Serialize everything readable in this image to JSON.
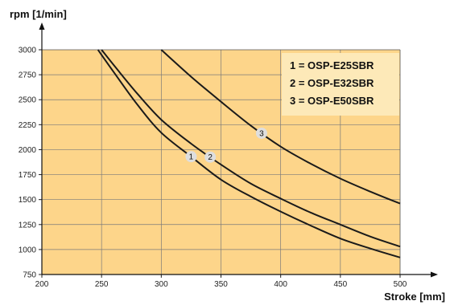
{
  "chart_data": {
    "type": "line",
    "title": "",
    "xlabel": "Stroke [mm]",
    "ylabel": "rpm  [1/min]",
    "xlim": [
      200,
      500
    ],
    "ylim": [
      750,
      3000
    ],
    "x_ticks": [
      "200",
      "250",
      "300",
      "350",
      "400",
      "450",
      "500"
    ],
    "y_ticks": [
      "750",
      "1000",
      "1250",
      "1500",
      "1750",
      "2000",
      "2250",
      "2500",
      "2750",
      "3000"
    ],
    "grid": true,
    "legend_position": "top-right",
    "colors": {
      "plot_background": "#fdd58a",
      "legend_background": "#fde9b8",
      "grid": "#7a7a7a",
      "line": "#1a1a1a",
      "marker_fill": "#dedede"
    },
    "legend": [
      "1 = OSP-E25SBR",
      "2 = OSP-E32SBR",
      "3 = OSP-E50SBR"
    ],
    "series": [
      {
        "marker": "1",
        "marker_x": 325,
        "points": [
          [
            247,
            3000
          ],
          [
            260,
            2780
          ],
          [
            280,
            2450
          ],
          [
            300,
            2170
          ],
          [
            325,
            1930
          ],
          [
            350,
            1700
          ],
          [
            375,
            1530
          ],
          [
            400,
            1380
          ],
          [
            425,
            1240
          ],
          [
            450,
            1110
          ],
          [
            475,
            1010
          ],
          [
            500,
            920
          ]
        ]
      },
      {
        "marker": "2",
        "marker_x": 341,
        "points": [
          [
            250,
            3000
          ],
          [
            262,
            2820
          ],
          [
            280,
            2560
          ],
          [
            300,
            2300
          ],
          [
            325,
            2060
          ],
          [
            350,
            1850
          ],
          [
            375,
            1660
          ],
          [
            400,
            1510
          ],
          [
            425,
            1370
          ],
          [
            450,
            1250
          ],
          [
            475,
            1130
          ],
          [
            500,
            1030
          ]
        ]
      },
      {
        "marker": "3",
        "marker_x": 384,
        "points": [
          [
            300,
            3000
          ],
          [
            325,
            2730
          ],
          [
            350,
            2480
          ],
          [
            375,
            2240
          ],
          [
            400,
            2030
          ],
          [
            425,
            1860
          ],
          [
            450,
            1710
          ],
          [
            475,
            1580
          ],
          [
            500,
            1460
          ]
        ]
      }
    ]
  }
}
